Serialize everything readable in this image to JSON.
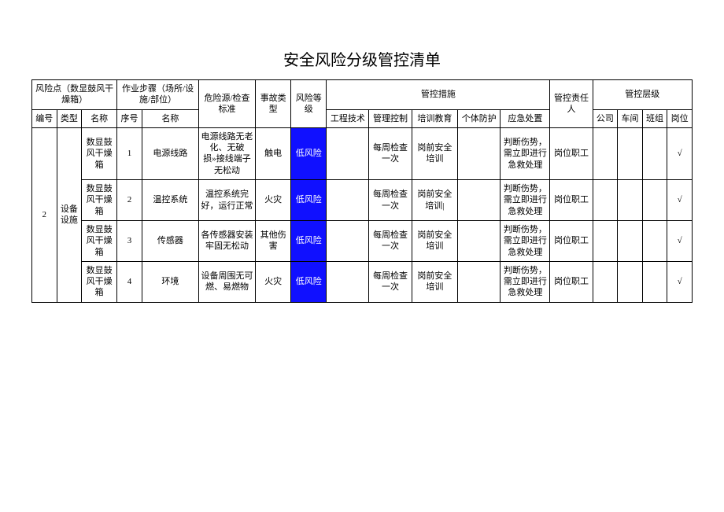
{
  "title": "安全风险分级管控清单",
  "colors": {
    "risk_low_bg": "#1010ff",
    "risk_low_fg": "#ffffff",
    "border": "#000000",
    "bg": "#ffffff",
    "text": "#000000"
  },
  "header": {
    "risk_point": "风险点（数显鼓风干燥箱）",
    "operation": "作业步骤（场所/设施/部位）",
    "hazard": "危险源/检查标准",
    "accident_type": "事故类型",
    "risk_level": "风险等级",
    "controls": "管控措施",
    "responsible": "管控责任人",
    "level": "管控层级",
    "sub": {
      "id": "编号",
      "type": "类型",
      "name": "名称",
      "seq": "序号",
      "step_name": "名称",
      "eng": "工程技术",
      "mgmt": "管理控制",
      "train": "培训教育",
      "ppe": "个体防护",
      "emerg": "应急处置",
      "company": "公司",
      "workshop": "车间",
      "team": "班组",
      "post": "岗位"
    }
  },
  "group": {
    "id": "2",
    "type": "设备设施"
  },
  "rows": [
    {
      "name": "数显鼓风干燥箱",
      "seq": "1",
      "step": "电源线路",
      "hazard": "电源线路无老化、无破损»接线端子无松动",
      "acc": "触电",
      "risk": "低风险",
      "eng": "",
      "mgmt": "每周检查一次",
      "train": "岗前安全培训",
      "ppe": "",
      "emerg": "判断伤势，需立即进行急救处理",
      "resp": "岗位职工",
      "co": "",
      "shop": "",
      "team": "",
      "post": "√"
    },
    {
      "name": "数显鼓风干燥箱",
      "seq": "2",
      "step": "温控系统",
      "hazard": "温控系统完好，运行正常",
      "acc": "火灾",
      "risk": "低风险",
      "eng": "",
      "mgmt": "每周检查一次",
      "train": "岗前安全培训|",
      "ppe": "",
      "emerg": "判断伤势，需立即进行急救处理",
      "resp": "岗位职工",
      "co": "",
      "shop": "",
      "team": "",
      "post": "√"
    },
    {
      "name": "数显鼓风干燥箱",
      "seq": "3",
      "step": "传感器",
      "hazard": "各传感器安装牢固无松动",
      "acc": "其他伤害",
      "risk": "低风险",
      "eng": "",
      "mgmt": "每周检查一次",
      "train": "岗前安全培训",
      "ppe": "",
      "emerg": "判断伤势，需立即进行急救处理",
      "resp": "岗位职工",
      "co": "",
      "shop": "",
      "team": "",
      "post": "√"
    },
    {
      "name": "数显鼓风干燥箱",
      "seq": "4",
      "step": "环境",
      "hazard": "设备周围无可燃、易燃物",
      "acc": "火灾",
      "risk": "低风险",
      "eng": "",
      "mgmt": "每周检查一次",
      "train": "岗前安全培训",
      "ppe": "",
      "emerg": "判断伤势，需立即进行急救处理",
      "resp": "岗位职工",
      "co": "",
      "shop": "",
      "team": "",
      "post": "√"
    }
  ]
}
